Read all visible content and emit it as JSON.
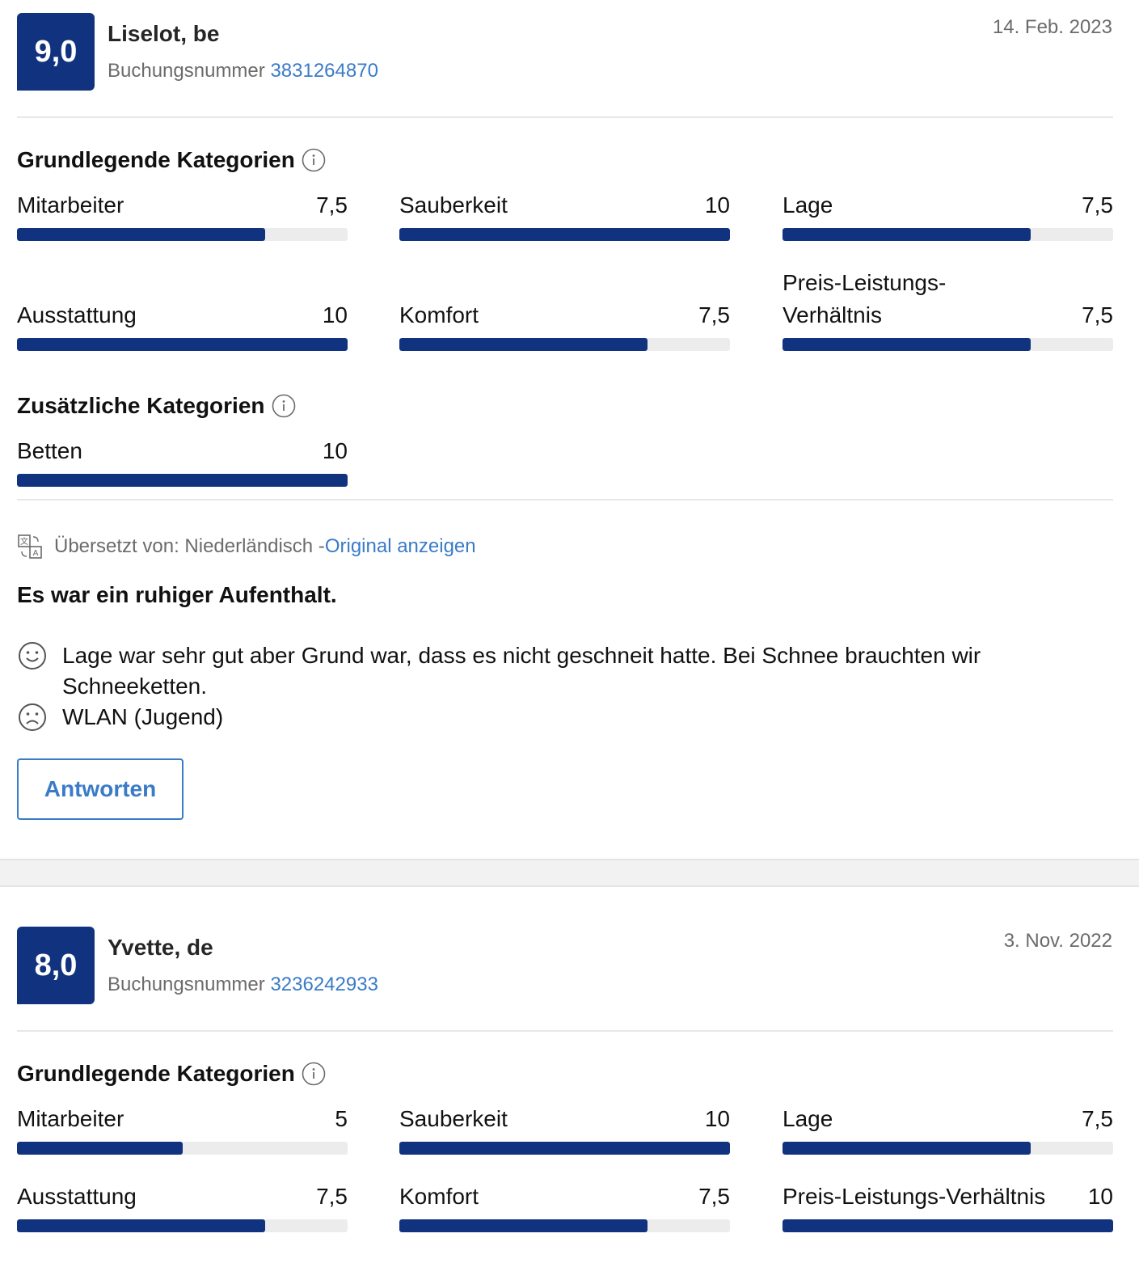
{
  "colors": {
    "accent": "#11337f",
    "link": "#3a7bc8",
    "track": "#ececec"
  },
  "reviews": [
    {
      "score": "9,0",
      "name": "Liselot, be",
      "booking_label": "Buchungsnummer",
      "booking_number": "3831264870",
      "date": "14. Feb. 2023",
      "basic_title": "Grundlegende Kategorien",
      "basic": [
        {
          "label": "Mitarbeiter",
          "value": "7,5",
          "fraction": 0.75
        },
        {
          "label": "Sauberkeit",
          "value": "10",
          "fraction": 1.0
        },
        {
          "label": "Lage",
          "value": "7,5",
          "fraction": 0.75
        },
        {
          "label": "Ausstattung",
          "value": "10",
          "fraction": 1.0
        },
        {
          "label": "Komfort",
          "value": "7,5",
          "fraction": 0.75
        },
        {
          "label": "Preis-Leistungs-Verhältnis",
          "value": "7,5",
          "fraction": 0.75
        }
      ],
      "extra_title": "Zusätzliche Kategorien",
      "extra": [
        {
          "label": "Betten",
          "value": "10",
          "fraction": 1.0
        }
      ],
      "translation_prefix": "Übersetzt von: Niederländisch - ",
      "translation_link": "Original anzeigen",
      "headline": "Es war ein ruhiger Aufenthalt.",
      "positive": "Lage war sehr gut aber Grund war, dass es nicht geschneit hatte. Bei Schnee brauchten wir Schneeketten.",
      "negative": "WLAN (Jugend)",
      "reply_label": "Antworten"
    },
    {
      "score": "8,0",
      "name": "Yvette, de",
      "booking_label": "Buchungsnummer",
      "booking_number": "3236242933",
      "date": "3. Nov. 2022",
      "basic_title": "Grundlegende Kategorien",
      "basic": [
        {
          "label": "Mitarbeiter",
          "value": "5",
          "fraction": 0.5
        },
        {
          "label": "Sauberkeit",
          "value": "10",
          "fraction": 1.0
        },
        {
          "label": "Lage",
          "value": "7,5",
          "fraction": 0.75
        },
        {
          "label": "Ausstattung",
          "value": "7,5",
          "fraction": 0.75
        },
        {
          "label": "Komfort",
          "value": "7,5",
          "fraction": 0.75
        },
        {
          "label": "Preis-Leistungs-Verhältnis",
          "value": "10",
          "fraction": 1.0
        }
      ]
    }
  ]
}
